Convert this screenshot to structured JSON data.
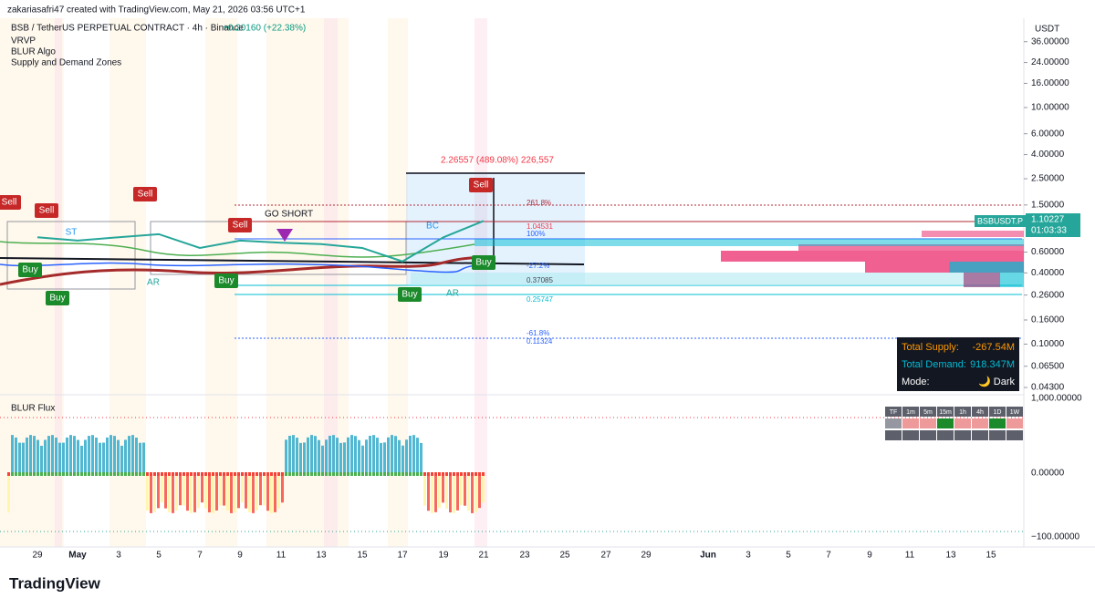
{
  "header": {
    "credit": "zakariasafri47 created with TradingView.com, May 21, 2026 03:56 UTC+1",
    "symbol": "BSB / TetherUS PERPETUAL CONTRACT · 4h · Binance",
    "change": "+0.20160 (+22.38%)",
    "indicators": [
      "VRVP",
      "BLUR Algo",
      "Supply and Demand Zones"
    ],
    "currency": "USDT"
  },
  "chart_data": {
    "type": "line",
    "categories": [
      "29",
      "May",
      "3",
      "5",
      "7",
      "9",
      "11",
      "13",
      "15",
      "17",
      "19",
      "21",
      "23",
      "25",
      "27",
      "29",
      "Jun",
      "3",
      "5",
      "7",
      "9",
      "11",
      "13",
      "15"
    ],
    "series": [
      {
        "name": "BSBUSDT.P",
        "color": "#26a69a",
        "values": [
          0.8,
          0.75,
          0.8,
          0.85,
          0.65,
          0.75,
          0.72,
          0.7,
          0.65,
          0.5,
          0.8,
          1.1,
          null,
          null,
          null,
          null,
          null,
          null,
          null,
          null,
          null,
          null,
          null,
          null
        ]
      }
    ],
    "log_scale": true,
    "ylim": [
      0.038,
      52
    ],
    "yticks": [
      {
        "value": 36,
        "label": "36.00000"
      },
      {
        "value": 24,
        "label": "24.00000"
      },
      {
        "value": 16,
        "label": "16.00000"
      },
      {
        "value": 10,
        "label": "10.00000"
      },
      {
        "value": 6,
        "label": "6.00000"
      },
      {
        "value": 4,
        "label": "4.00000"
      },
      {
        "value": 2.5,
        "label": "2.50000"
      },
      {
        "value": 1.5,
        "label": "1.50000"
      },
      {
        "value": 0.6,
        "label": "0.60000"
      },
      {
        "value": 0.4,
        "label": "0.40000"
      },
      {
        "value": 0.26,
        "label": "0.26000"
      },
      {
        "value": 0.16,
        "label": "0.16000"
      },
      {
        "value": 0.1,
        "label": "0.10000"
      },
      {
        "value": 0.065,
        "label": "0.06500"
      },
      {
        "value": 0.043,
        "label": "0.04300"
      }
    ]
  },
  "annotations": {
    "measure": "2.26557 (489.08%) 226,557",
    "go_short": "GO SHORT",
    "signals": [
      "Sell",
      "Sell",
      "Sell",
      "Sell",
      "Sell",
      "Buy",
      "Buy",
      "Buy",
      "Buy",
      "Buy"
    ],
    "structure": [
      "ST",
      "AR",
      "BC",
      "AR"
    ],
    "fib": [
      "261.8%",
      "1.04531",
      "100%",
      "0.37085",
      "0.25747",
      "-27.2%",
      "-61.8%",
      "0.11324"
    ]
  },
  "price_tag": {
    "symbol": "BSBUSDT.P",
    "price": "1.10227",
    "countdown": "01:03:33"
  },
  "info_table": {
    "rows": [
      [
        "Total Supply:",
        "-267.54M"
      ],
      [
        "Total Demand:",
        "918.347M"
      ],
      [
        "Mode:",
        "🌙 Dark"
      ]
    ]
  },
  "flux": {
    "title": "BLUR Flux",
    "ticks": [
      "1,000.00000",
      "0.00000",
      "−100.00000"
    ],
    "tf_header": [
      "TF",
      "1m",
      "5m",
      "15m",
      "1h",
      "4h",
      "1D",
      "1W"
    ]
  },
  "footer": {
    "brand": "TradingView"
  }
}
